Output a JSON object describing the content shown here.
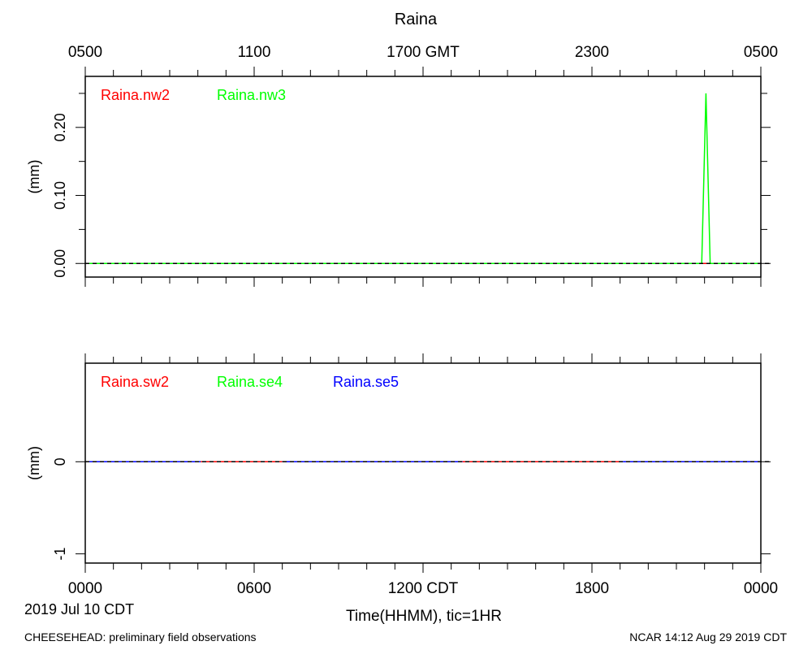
{
  "title": "Raina",
  "top_axis_labels": [
    "0500",
    "1100",
    "1700 GMT",
    "2300",
    "0500"
  ],
  "bottom_axis_labels": [
    "0000",
    "0600",
    "1200 CDT",
    "1800",
    "0000"
  ],
  "date_label": "2019 Jul 10 CDT",
  "xlabel": "Time(HHMM), tic=1HR",
  "footer_left": "CHEESEHEAD: preliminary field observations",
  "footer_right": "NCAR 14:12 Aug 29 2019 CDT",
  "colors": {
    "red": "#ff0000",
    "green": "#00ff00",
    "blue": "#0000ff",
    "axis": "#000000"
  },
  "chart_data": [
    {
      "type": "line",
      "ylabel": "(mm)",
      "x_unit": "hours CDT",
      "xlim": [
        0,
        24
      ],
      "ylim": [
        -0.02,
        0.275
      ],
      "yticks": [
        0.0,
        0.1,
        0.2
      ],
      "ytick_labels": [
        "0.00",
        "0.10",
        "0.20"
      ],
      "zero_line_dashed": true,
      "series": [
        {
          "name": "Raina.nw2",
          "color": "#ff0000",
          "x": [
            0,
            24
          ],
          "y": [
            0,
            0
          ]
        },
        {
          "name": "Raina.nw3",
          "color": "#00ff00",
          "x": [
            0,
            21.9,
            22.05,
            22.2,
            24
          ],
          "y": [
            0,
            0,
            0.25,
            0,
            0
          ]
        }
      ]
    },
    {
      "type": "line",
      "ylabel": "(mm)",
      "x_unit": "hours CDT",
      "xlim": [
        0,
        24
      ],
      "ylim": [
        -1.1,
        1.07
      ],
      "yticks": [
        0,
        -1
      ],
      "ytick_labels": [
        "0",
        "-1"
      ],
      "zero_line_dashed": true,
      "series": [
        {
          "name": "Raina.sw2",
          "color": "#ff0000",
          "x": [
            0,
            24
          ],
          "y": [
            0,
            0
          ]
        },
        {
          "name": "Raina.se4",
          "color": "#00ff00",
          "x": [
            0,
            4.1,
            null,
            7.0,
            13.4,
            null,
            19.1,
            24
          ],
          "y": [
            0,
            0,
            null,
            0,
            0,
            null,
            0,
            0
          ]
        },
        {
          "name": "Raina.se5",
          "color": "#0000ff",
          "x": [
            0,
            4.1,
            null,
            7.0,
            13.4,
            null,
            19.1,
            24
          ],
          "y": [
            0,
            0,
            null,
            0,
            0,
            null,
            0,
            0
          ]
        }
      ]
    }
  ]
}
